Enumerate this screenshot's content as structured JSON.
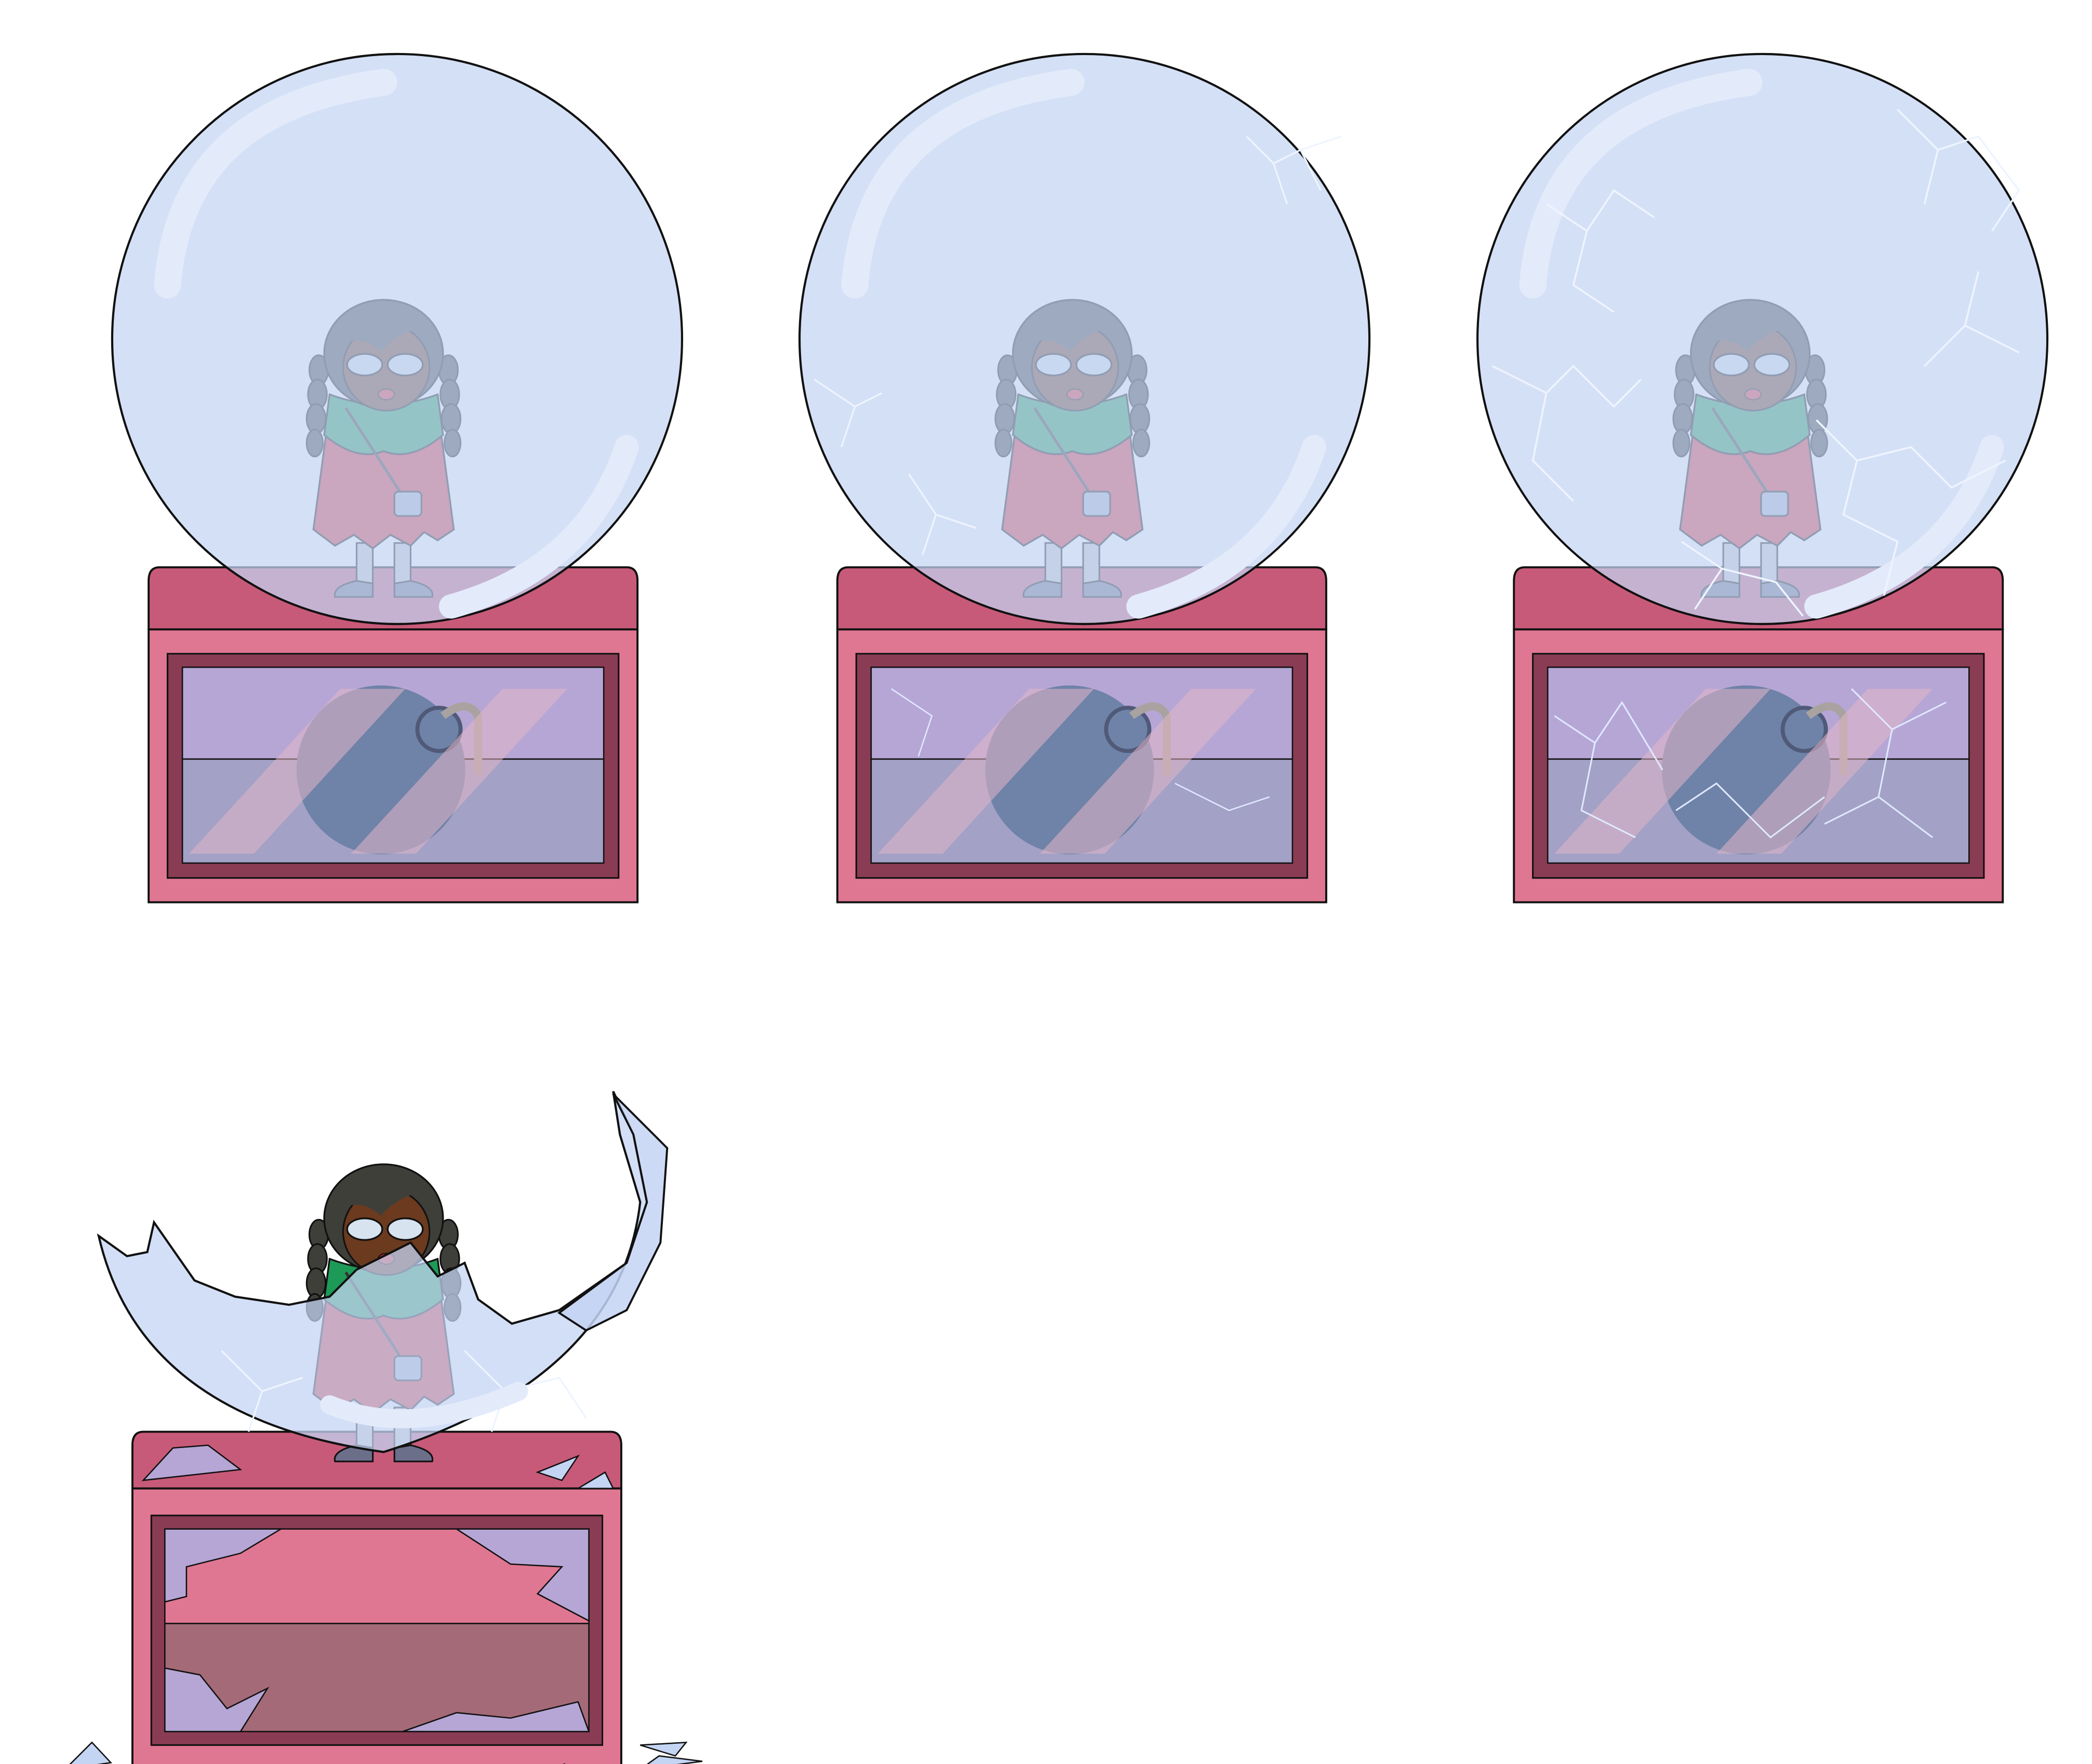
{
  "scene": {
    "description_free": true,
    "panel_count": 4,
    "stages": [
      "intact",
      "light-cracks",
      "heavy-cracks",
      "shattered"
    ]
  },
  "palette": {
    "background": "#ffffff",
    "globe_fill": "#c4d4f3",
    "globe_highlight": "#e3ebfb",
    "crack": "#eef4ff",
    "base_top": "#c85a79",
    "base_body": "#e07792",
    "base_frame": "#8a3c54",
    "window_upper": "#b6a6d6",
    "window_lower": "#a3a1c6",
    "bomb": "#6f82a8",
    "stripe": "#e2b6c6",
    "skin": "#6b3a1f",
    "hair": "#3f3f3a",
    "scarf": "#1d9a57",
    "dress": "#d9303a",
    "outline": "#111111"
  }
}
